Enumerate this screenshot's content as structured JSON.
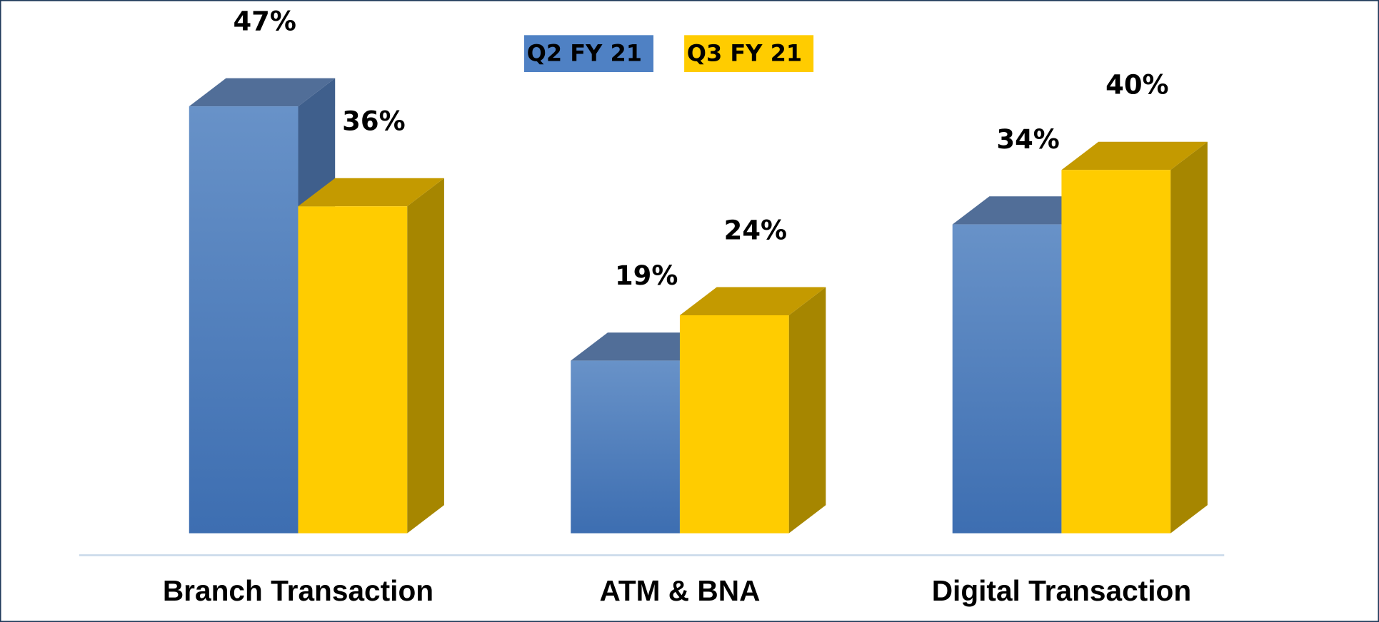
{
  "chart_data": {
    "type": "bar3d",
    "categories": [
      "Branch Transaction",
      "ATM & BNA",
      "Digital Transaction"
    ],
    "series": [
      {
        "name": "Q2 FY 21",
        "color": "#4f81c4",
        "values": [
          47,
          19,
          34
        ],
        "value_labels": [
          "47%",
          "19%",
          "34%"
        ]
      },
      {
        "name": "Q3 FY 21",
        "color": "#ffcc00",
        "values": [
          36,
          24,
          40
        ],
        "value_labels": [
          "36%",
          "24%",
          "40%"
        ]
      }
    ],
    "legend": "top"
  }
}
